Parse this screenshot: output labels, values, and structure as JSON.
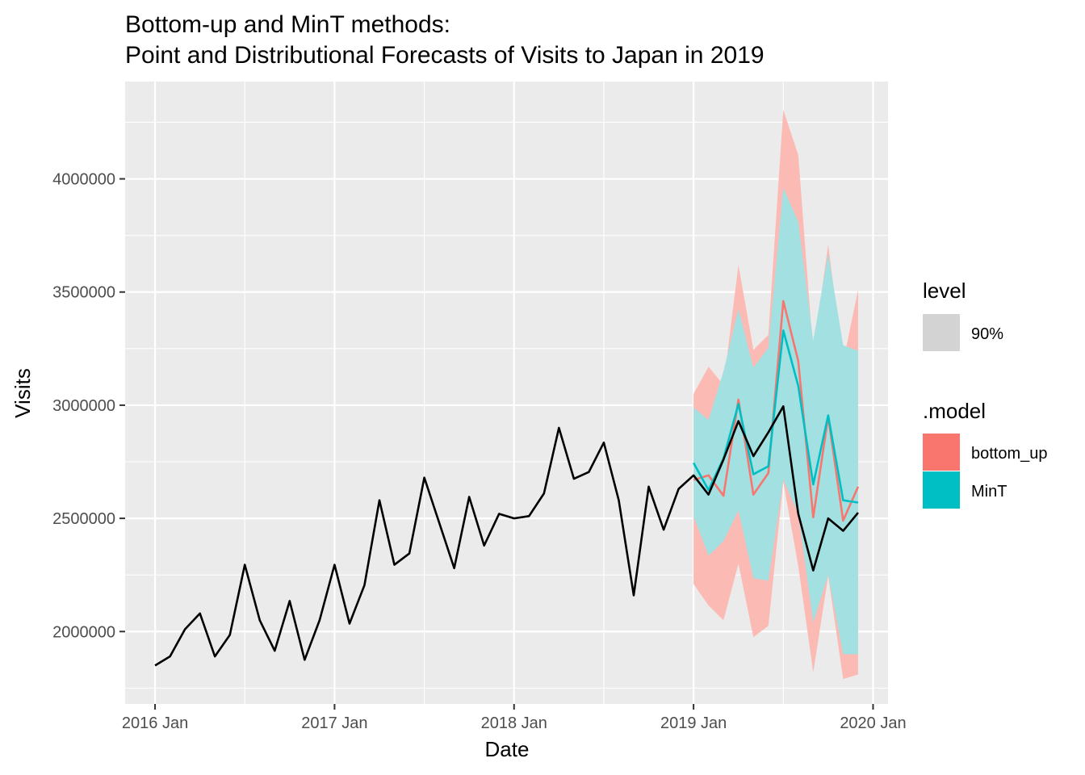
{
  "chart_data": {
    "type": "line",
    "title": "Bottom-up and MinT methods:",
    "subtitle": "Point and Distributional Forecasts of Visits to Japan in 2019",
    "xlabel": "Date",
    "ylabel": "Visits",
    "x_ticks": [
      "2016 Jan",
      "2017 Jan",
      "2018 Jan",
      "2019 Jan",
      "2020 Jan"
    ],
    "y_ticks": [
      "2000000",
      "2500000",
      "3000000",
      "3500000",
      "4000000"
    ],
    "y_tick_values": [
      2000000,
      2500000,
      3000000,
      3500000,
      4000000
    ],
    "xlim": [
      "2015-11",
      "2020-02"
    ],
    "ylim": [
      1680000,
      4430000
    ],
    "grid": true,
    "colors": {
      "panel": "#ebebeb",
      "grid": "#ffffff",
      "actual": "#000000",
      "bottom_up": "#f8766d",
      "mint": "#00bfc4",
      "bottom_up_band": "#fcbab4",
      "mint_band": "#a3e0e1",
      "level_key": "#d3d3d3"
    },
    "legend": {
      "position": "right",
      "level_title": "level",
      "level_items": [
        "90%"
      ],
      "model_title": ".model",
      "model_items": [
        "bottom_up",
        "MinT"
      ]
    },
    "series": [
      {
        "name": "",
        "role": "actual",
        "x": [
          "2016-01",
          "2016-02",
          "2016-03",
          "2016-04",
          "2016-05",
          "2016-06",
          "2016-07",
          "2016-08",
          "2016-09",
          "2016-10",
          "2016-11",
          "2016-12",
          "2017-01",
          "2017-02",
          "2017-03",
          "2017-04",
          "2017-05",
          "2017-06",
          "2017-07",
          "2017-08",
          "2017-09",
          "2017-10",
          "2017-11",
          "2017-12",
          "2018-01",
          "2018-02",
          "2018-03",
          "2018-04",
          "2018-05",
          "2018-06",
          "2018-07",
          "2018-08",
          "2018-09",
          "2018-10",
          "2018-11",
          "2018-12",
          "2019-01",
          "2019-02",
          "2019-03",
          "2019-04",
          "2019-05",
          "2019-06",
          "2019-07",
          "2019-08",
          "2019-09",
          "2019-10",
          "2019-11",
          "2019-12"
        ],
        "values": [
          1850000,
          1890000,
          2010000,
          2080000,
          1890000,
          1985000,
          2295000,
          2050000,
          1915000,
          2135000,
          1875000,
          2050000,
          2295000,
          2035000,
          2205000,
          2580000,
          2295000,
          2345000,
          2680000,
          2480000,
          2280000,
          2595000,
          2380000,
          2520000,
          2500000,
          2510000,
          2610000,
          2900000,
          2675000,
          2705000,
          2835000,
          2580000,
          2160000,
          2640000,
          2450000,
          2630000,
          2690000,
          2605000,
          2760000,
          2930000,
          2775000,
          2880000,
          2995000,
          2520000,
          2270000,
          2500000,
          2445000,
          2525000
        ]
      },
      {
        "name": "bottom_up",
        "x": [
          "2019-01",
          "2019-02",
          "2019-03",
          "2019-04",
          "2019-05",
          "2019-06",
          "2019-07",
          "2019-08",
          "2019-09",
          "2019-10",
          "2019-11",
          "2019-12"
        ],
        "values": [
          2670000,
          2690000,
          2600000,
          3025000,
          2605000,
          2700000,
          3460000,
          3195000,
          2505000,
          2950000,
          2490000,
          2640000
        ],
        "lower_90": [
          2210000,
          2115000,
          2050000,
          2300000,
          1975000,
          2025000,
          2660000,
          2290000,
          1820000,
          2245000,
          1790000,
          1810000
        ],
        "upper_90": [
          3050000,
          3170000,
          3090000,
          3620000,
          3245000,
          3310000,
          4305000,
          4105000,
          3230000,
          3710000,
          3190000,
          3510000
        ]
      },
      {
        "name": "MinT",
        "x": [
          "2019-01",
          "2019-02",
          "2019-03",
          "2019-04",
          "2019-05",
          "2019-06",
          "2019-07",
          "2019-08",
          "2019-09",
          "2019-10",
          "2019-11",
          "2019-12"
        ],
        "values": [
          2745000,
          2625000,
          2765000,
          3005000,
          2695000,
          2730000,
          3330000,
          3085000,
          2650000,
          2955000,
          2580000,
          2570000
        ],
        "lower_90": [
          2510000,
          2335000,
          2400000,
          2535000,
          2235000,
          2225000,
          2670000,
          2520000,
          2040000,
          2250000,
          1900000,
          1900000
        ],
        "upper_90": [
          2990000,
          2935000,
          3150000,
          3425000,
          3165000,
          3255000,
          3960000,
          3810000,
          3285000,
          3670000,
          3265000,
          3240000
        ]
      }
    ]
  }
}
